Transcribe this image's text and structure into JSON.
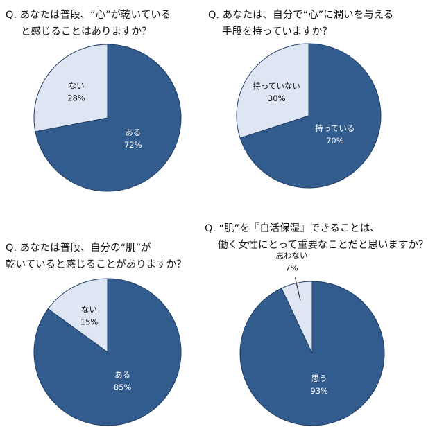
{
  "chart_data": [
    {
      "type": "pie",
      "title": [
        "Q. あなたは普段、“心”が乾いている",
        "と感じることはありますか？"
      ],
      "categories": [
        "ある",
        "ない"
      ],
      "values": [
        72,
        28
      ],
      "value_labels": [
        "72%",
        "28%"
      ],
      "colors": [
        "#335c8e",
        "#dde6f2"
      ]
    },
    {
      "type": "pie",
      "title": [
        "Q. あなたは、自分で“心”に潤いを与える",
        "手段を持っていますか？"
      ],
      "categories": [
        "持っている",
        "持っていない"
      ],
      "values": [
        70,
        30
      ],
      "value_labels": [
        "70%",
        "30%"
      ],
      "colors": [
        "#335c8e",
        "#dde6f2"
      ]
    },
    {
      "type": "pie",
      "title": [
        "Q. あなたは普段、自分の“肌”が",
        "乾いていると感じることがありますか？"
      ],
      "categories": [
        "ある",
        "ない"
      ],
      "values": [
        85,
        15
      ],
      "value_labels": [
        "85%",
        "15%"
      ],
      "colors": [
        "#335c8e",
        "#dde6f2"
      ]
    },
    {
      "type": "pie",
      "title": [
        "Q. “肌”を『自活保湿』できることは、",
        "働く女性にとって重要なことだと思いますか？"
      ],
      "categories": [
        "思う",
        "思わない"
      ],
      "values": [
        93,
        7
      ],
      "value_labels": [
        "93%",
        "7%"
      ],
      "colors": [
        "#335c8e",
        "#dde6f2"
      ]
    }
  ]
}
